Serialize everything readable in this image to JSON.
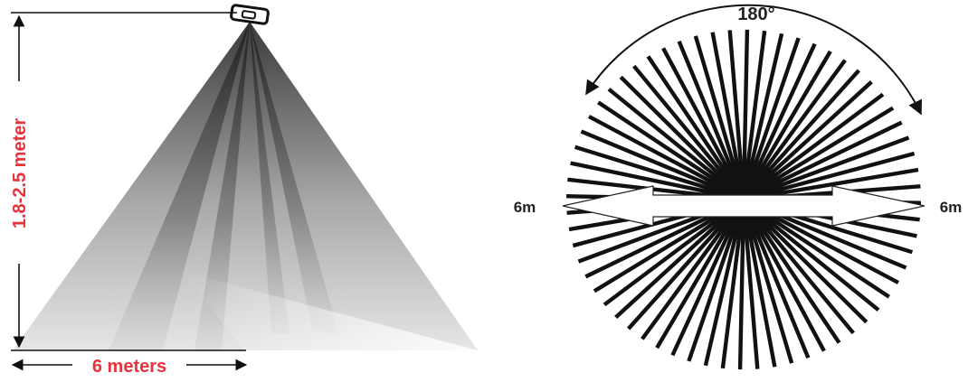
{
  "side_view": {
    "height_label": "1.8-2.5 meter",
    "width_label": "6 meters"
  },
  "top_view": {
    "angle_label": "180°",
    "left_range_label": "6m",
    "right_range_label": "6m"
  },
  "colors": {
    "label_red": "#e8323c",
    "label_dark": "#222222",
    "line": "#111111"
  }
}
